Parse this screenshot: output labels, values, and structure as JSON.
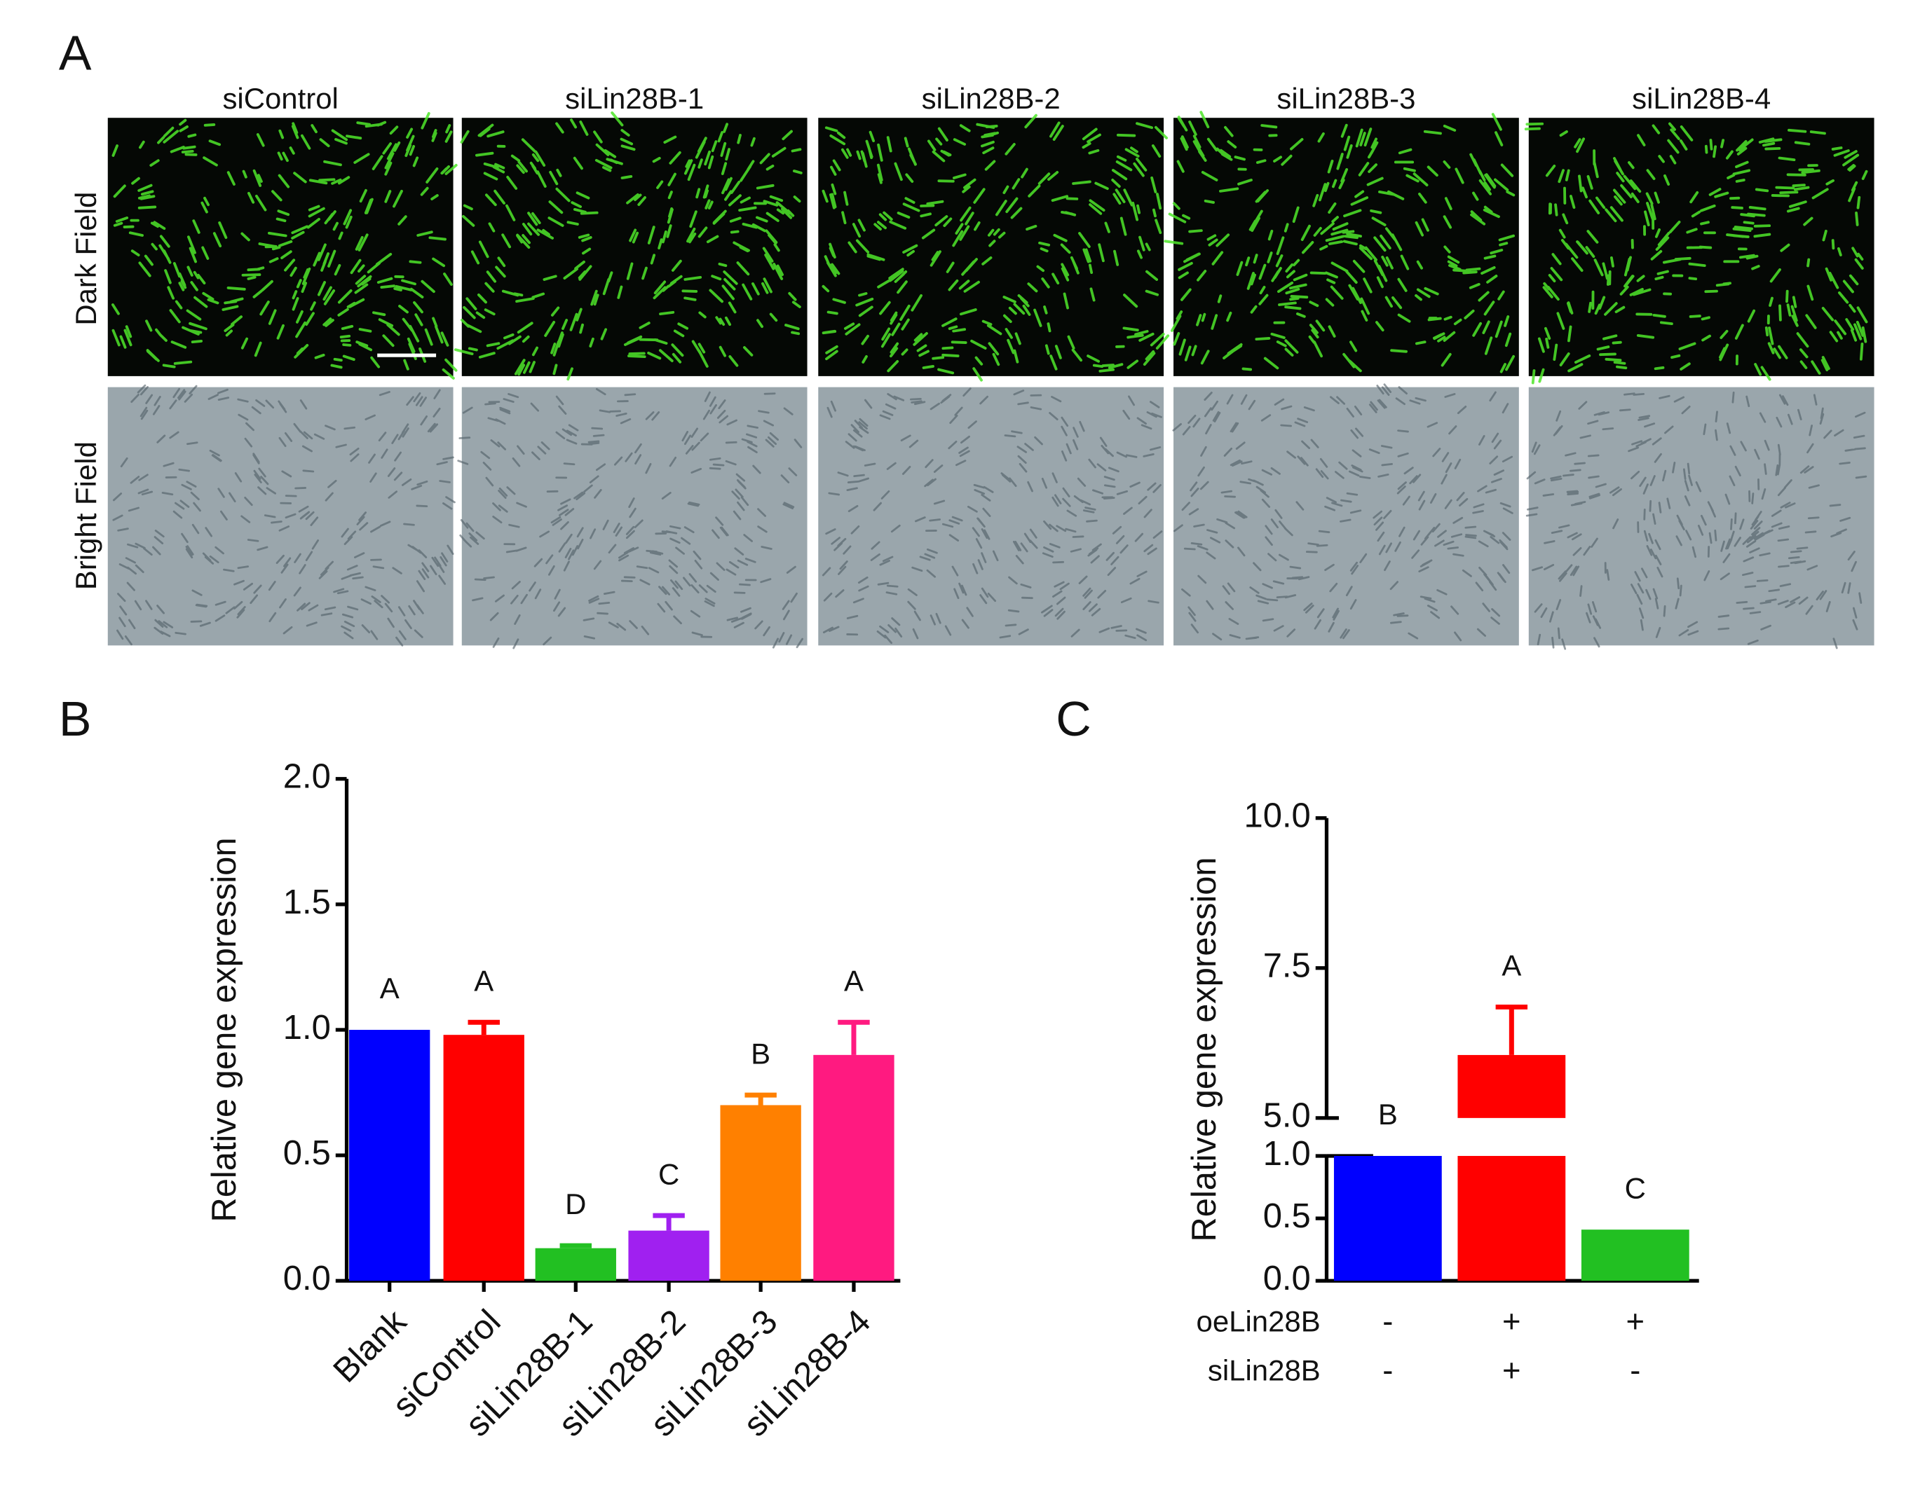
{
  "panel_a": {
    "label": "A",
    "columns": [
      "siControl",
      "siLin28B-1",
      "siLin28B-2",
      "siLin28B-3",
      "siLin28B-4"
    ],
    "rows": [
      "Dark Field",
      "Bright Field"
    ]
  },
  "chart_data": [
    {
      "type": "bar",
      "panel_label": "B",
      "y_label": "Relative gene expression",
      "categories": [
        "Blank",
        "siControl",
        "siLin28B-1",
        "siLin28B-2",
        "siLin28B-3",
        "siLin28B-4"
      ],
      "values": [
        1.0,
        0.98,
        0.13,
        0.2,
        0.7,
        0.9
      ],
      "errors": [
        0,
        0.05,
        0.01,
        0.06,
        0.04,
        0.13
      ],
      "significance": [
        "A",
        "A",
        "D",
        "C",
        "B",
        "A"
      ],
      "colors": [
        "#0000ff",
        "#ff0000",
        "#22c022",
        "#a020f0",
        "#ff8000",
        "#ff1a80"
      ],
      "ylim": [
        0,
        2
      ],
      "yticks": [
        {
          "value": 0,
          "label": "0.0"
        },
        0.5,
        {
          "value": 1,
          "label": "1.0"
        },
        1.5,
        {
          "value": 2,
          "label": "2.0"
        }
      ]
    },
    {
      "type": "bar",
      "panel_label": "C",
      "y_label": "Relative gene expression",
      "categories": [
        null,
        null,
        null
      ],
      "values": [
        1.0,
        6.05,
        0.41
      ],
      "errors": [
        0,
        0.8,
        0
      ],
      "significance": [
        "B",
        "A",
        "C"
      ],
      "colors": [
        "#0000ff",
        "#ff0000",
        "#22c022"
      ],
      "ylim": [
        0,
        10
      ],
      "axis_break": [
        1,
        5
      ],
      "yticks": [
        {
          "value": 0,
          "label": "0.0"
        },
        0.5,
        {
          "value": 1,
          "label": "1.0"
        },
        {
          "value": 5,
          "label": "5.0"
        },
        7.5,
        {
          "value": 10,
          "label": "10.0"
        }
      ],
      "conditions": [
        {
          "name": "oeLin28B",
          "values": [
            "-",
            "+",
            "+"
          ]
        },
        {
          "name": "siLin28B",
          "values": [
            "-",
            "+",
            "-"
          ]
        }
      ]
    }
  ]
}
